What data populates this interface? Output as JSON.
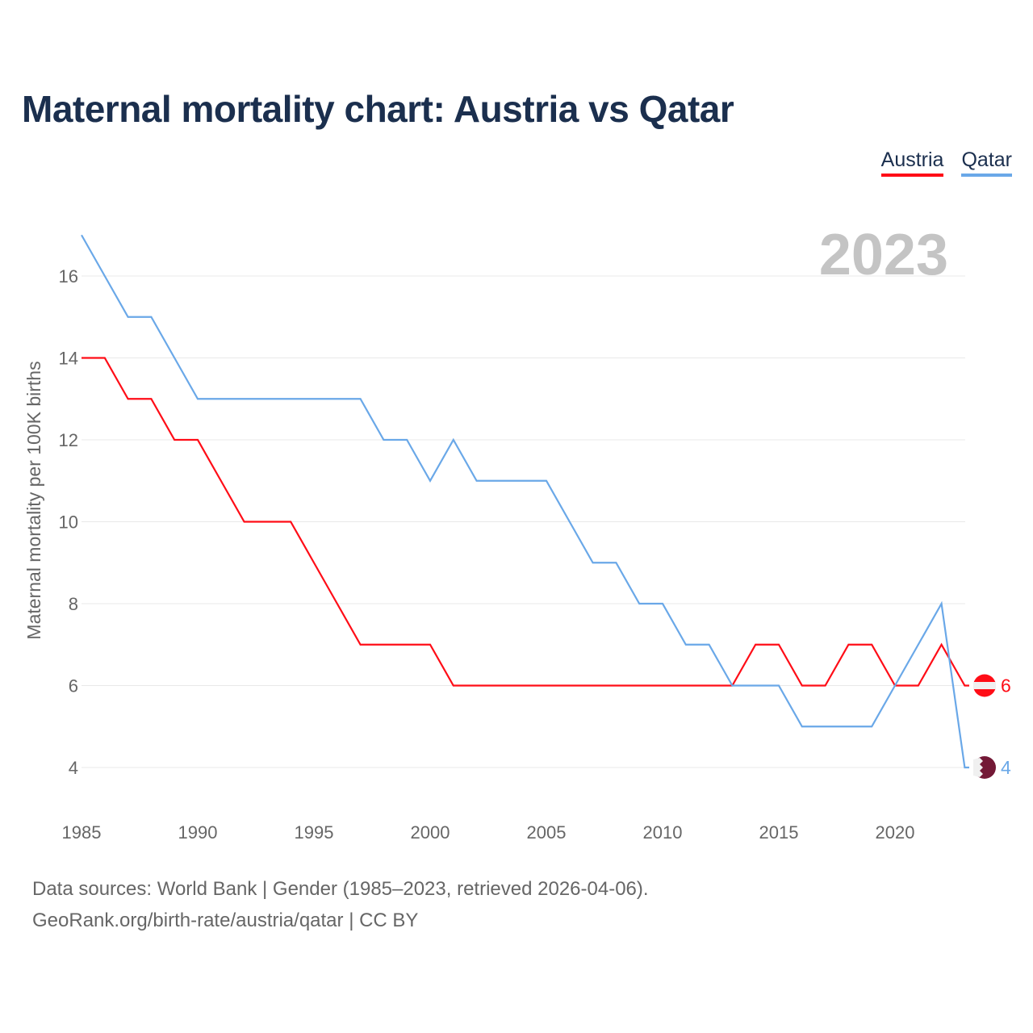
{
  "title": "Maternal mortality chart: Austria vs Qatar",
  "year_label": "2023",
  "footer": {
    "line1": "Data sources: World Bank | Gender (1985–2023, retrieved 2026-04-06).",
    "line2": "GeoRank.org/birth-rate/austria/qatar | CC BY"
  },
  "chart_data": {
    "type": "line",
    "title": "Maternal mortality chart: Austria vs Qatar",
    "xlabel": "",
    "ylabel": "Maternal mortality per 100K births",
    "xlim": [
      1985,
      2023
    ],
    "ylim": [
      4,
      16
    ],
    "x_ticks": [
      "1985",
      "1990",
      "1995",
      "2000",
      "2005",
      "2010",
      "2015",
      "2020"
    ],
    "y_ticks": [
      "4",
      "6",
      "8",
      "10",
      "12",
      "14",
      "16"
    ],
    "grid": true,
    "legend": "top-right",
    "x": [
      1985,
      1986,
      1987,
      1988,
      1989,
      1990,
      1991,
      1992,
      1993,
      1994,
      1995,
      1996,
      1997,
      1998,
      1999,
      2000,
      2001,
      2002,
      2003,
      2004,
      2005,
      2006,
      2007,
      2008,
      2009,
      2010,
      2011,
      2012,
      2013,
      2014,
      2015,
      2016,
      2017,
      2018,
      2019,
      2020,
      2021,
      2022,
      2023
    ],
    "series": [
      {
        "name": "Austria",
        "color": "#ff0d17",
        "end_label": "6",
        "values": [
          14,
          14,
          13,
          13,
          12,
          12,
          11,
          10,
          10,
          10,
          9,
          8,
          7,
          7,
          7,
          7,
          6,
          6,
          6,
          6,
          6,
          6,
          6,
          6,
          6,
          6,
          6,
          6,
          6,
          7,
          7,
          6,
          6,
          7,
          7,
          6,
          6,
          7,
          6
        ]
      },
      {
        "name": "Qatar",
        "color": "#6aa8e8",
        "end_label": "4",
        "values": [
          17,
          16,
          15,
          15,
          14,
          13,
          13,
          13,
          13,
          13,
          13,
          13,
          13,
          12,
          12,
          11,
          12,
          11,
          11,
          11,
          11,
          10,
          9,
          9,
          8,
          8,
          7,
          7,
          6,
          6,
          6,
          5,
          5,
          5,
          5,
          6,
          7,
          8,
          4
        ]
      }
    ]
  }
}
